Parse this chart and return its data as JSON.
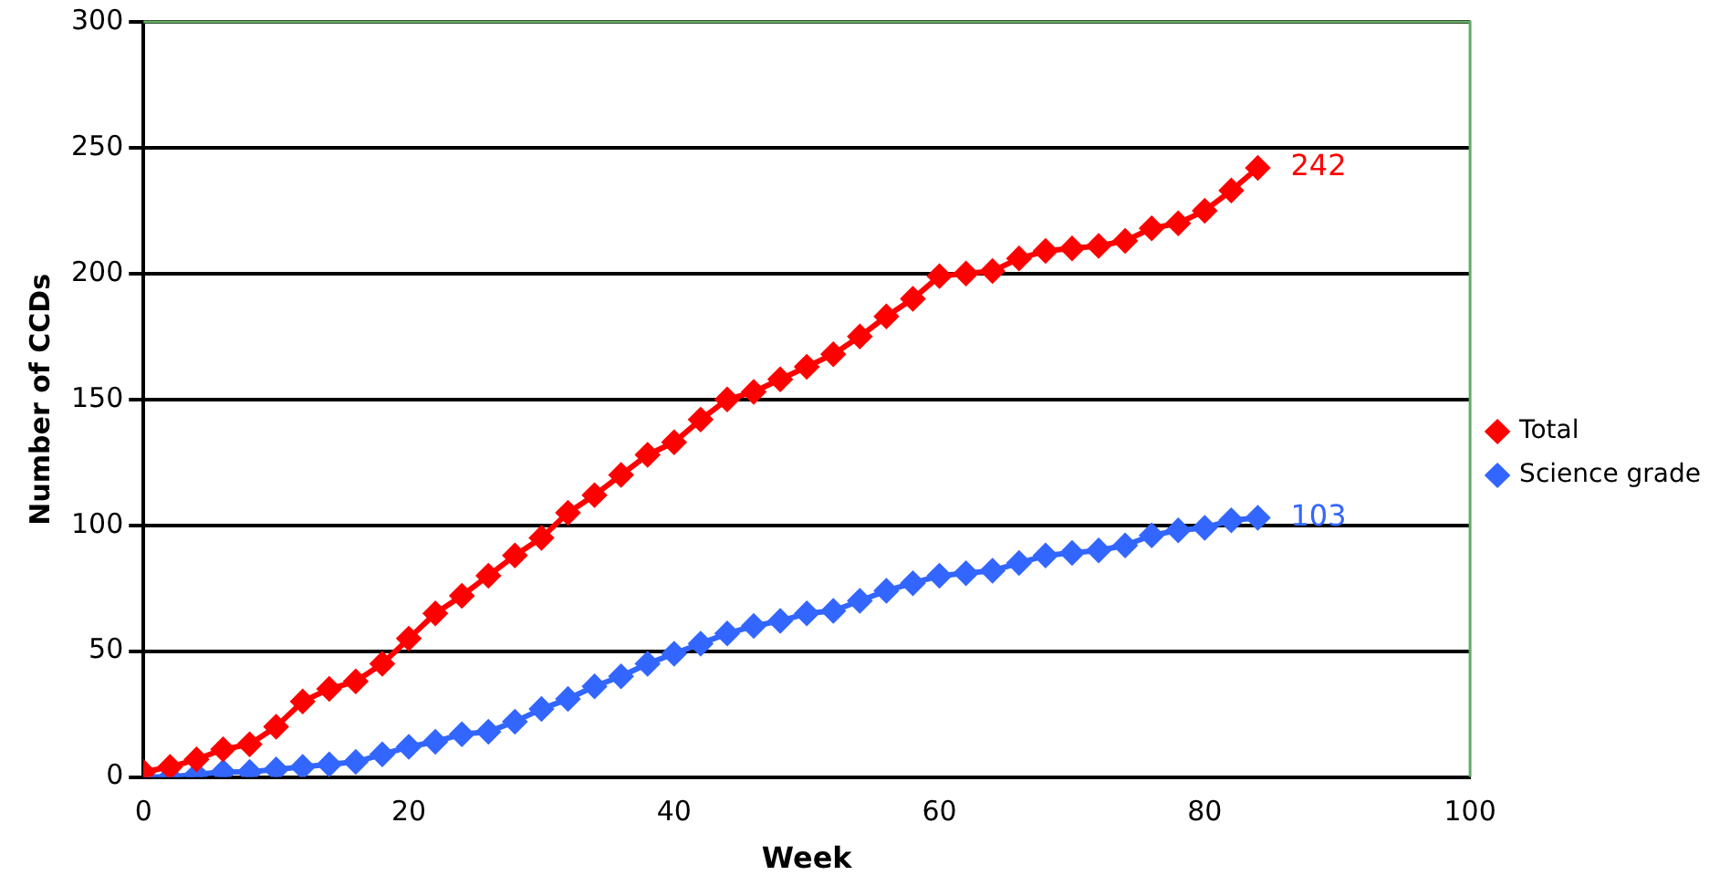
{
  "chart_data": {
    "type": "line",
    "xlabel": "Week",
    "ylabel": "Number of CCDs",
    "x": [
      0,
      2,
      4,
      6,
      8,
      10,
      12,
      14,
      16,
      18,
      20,
      22,
      24,
      26,
      28,
      30,
      32,
      34,
      36,
      38,
      40,
      42,
      44,
      46,
      48,
      50,
      52,
      54,
      56,
      58,
      60,
      62,
      64,
      66,
      68,
      70,
      72,
      74,
      76,
      78,
      80,
      82,
      84
    ],
    "series": [
      {
        "name": "Total",
        "color": "#ff0000",
        "values": [
          2,
          4,
          7,
          11,
          13,
          20,
          30,
          35,
          38,
          45,
          55,
          65,
          72,
          80,
          88,
          95,
          105,
          112,
          120,
          128,
          133,
          142,
          150,
          153,
          158,
          163,
          168,
          175,
          183,
          190,
          199,
          200,
          201,
          206,
          209,
          210,
          211,
          213,
          218,
          220,
          225,
          233,
          242
        ]
      },
      {
        "name": "Science grade",
        "color": "#3366ff",
        "values": [
          0,
          0,
          1,
          2,
          2,
          3,
          4,
          5,
          6,
          9,
          12,
          14,
          17,
          18,
          22,
          27,
          31,
          36,
          40,
          45,
          49,
          53,
          57,
          60,
          62,
          65,
          66,
          70,
          74,
          77,
          80,
          81,
          82,
          85,
          88,
          89,
          90,
          92,
          96,
          98,
          99,
          102,
          103
        ]
      }
    ],
    "annotations": [
      {
        "text": "242",
        "x": 84,
        "y": 242
      },
      {
        "text": "103",
        "x": 84,
        "y": 103
      }
    ],
    "xlim": [
      0,
      100
    ],
    "xticks": [
      0,
      20,
      40,
      60,
      80,
      100
    ],
    "ylim": [
      0,
      300
    ],
    "yticks": [
      0,
      50,
      100,
      150,
      200,
      250,
      300
    ],
    "grid": "y",
    "legend": "right",
    "marker": "diamond",
    "line_style": "solid"
  }
}
